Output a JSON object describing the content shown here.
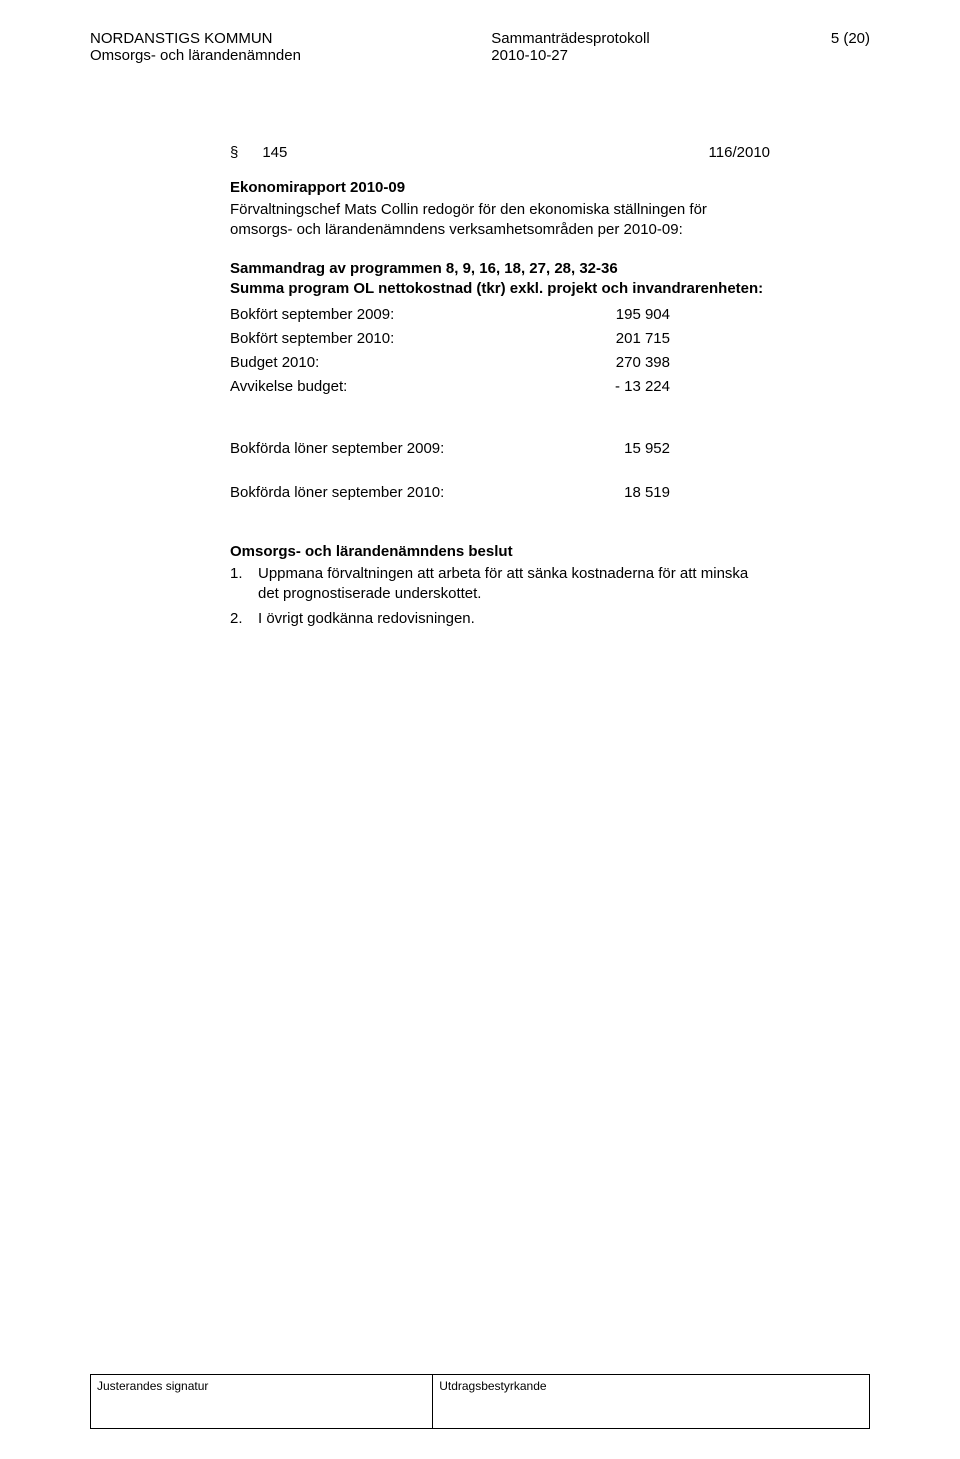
{
  "header": {
    "org_name": "NORDANSTIGS KOMMUN",
    "committee": "Omsorgs- och lärandenämnden",
    "doc_title": "Sammanträdesprotokoll",
    "doc_date": "2010-10-27",
    "page_num": "5 (20)"
  },
  "section": {
    "symbol": "§",
    "paragraph_no": "145",
    "dnr": "116/2010"
  },
  "report": {
    "title": "Ekonomirapport 2010-09",
    "intro": "Förvaltningschef Mats Collin redogör för den ekonomiska ställningen för omsorgs- och lärandenämndens verksamhetsområden per 2010-09:",
    "summary_heading_line1": "Sammandrag av programmen 8, 9, 16, 18, 27, 28, 32-36",
    "summary_heading_line2": "Summa program OL nettokostnad (tkr) exkl. projekt och invandrarenheten:",
    "rows": [
      {
        "label": "Bokfört september 2009:",
        "value": "195 904"
      },
      {
        "label": "Bokfört september 2010:",
        "value": "201 715"
      },
      {
        "label": "Budget 2010:",
        "value": "270 398"
      },
      {
        "label": "Avvikelse budget:",
        "value": "- 13 224"
      }
    ],
    "salary_rows": [
      {
        "label": "Bokförda löner september 2009:",
        "value": "15 952"
      },
      {
        "label": "Bokförda löner september 2010:",
        "value": "18 519"
      }
    ]
  },
  "decision": {
    "heading": "Omsorgs- och lärandenämndens beslut",
    "items": [
      {
        "num": "1.",
        "text": "Uppmana förvaltningen att arbeta för att sänka kostnaderna för att minska det prognostiserade underskottet."
      },
      {
        "num": "2.",
        "text": "I övrigt godkänna redovisningen."
      }
    ]
  },
  "footer": {
    "left": "Justerandes signatur",
    "right": "Utdragsbestyrkande"
  }
}
